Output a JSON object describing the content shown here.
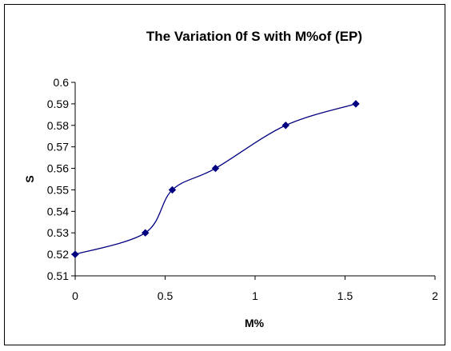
{
  "chart_data": {
    "type": "line",
    "title": "The Variation 0f S with M%of (EP)",
    "xlabel": "M%",
    "ylabel": "S",
    "xlim": [
      0,
      2
    ],
    "ylim": [
      0.51,
      0.6
    ],
    "x_ticks": [
      "0",
      "0.5",
      "1",
      "1.5",
      "2"
    ],
    "y_ticks": [
      "0.51",
      "0.52",
      "0.53",
      "0.54",
      "0.55",
      "0.56",
      "0.57",
      "0.58",
      "0.59",
      "0.6"
    ],
    "series": [
      {
        "x": [
          0,
          0.39,
          0.54,
          0.78,
          1.17,
          1.56
        ],
        "y": [
          0.52,
          0.53,
          0.55,
          0.56,
          0.58,
          0.59
        ],
        "color": "#000080",
        "marker": "diamond",
        "smooth": true
      }
    ],
    "grid": false,
    "legend": "none"
  }
}
